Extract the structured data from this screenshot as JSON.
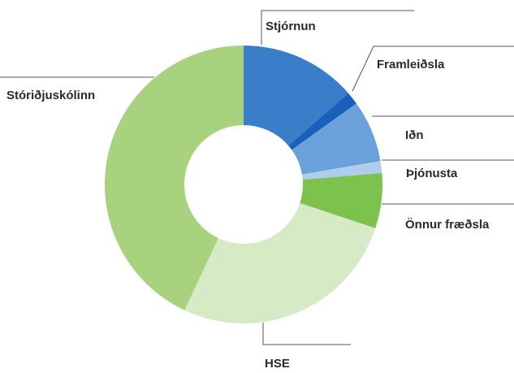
{
  "chart_data": {
    "type": "donut",
    "categories": [
      "Stjórnun",
      "Framleiðsla",
      "Iðn",
      "Þjónusta",
      "Önnur fræðsla",
      "HSE",
      "Stóriðjuskólinn"
    ],
    "values": [
      13.6,
      1.5,
      7.2,
      1.4,
      6.4,
      26.9,
      43.0
    ],
    "colors": [
      "#3a7dc9",
      "#1b5fbd",
      "#6ba1da",
      "#b0cdee",
      "#7dc24c",
      "#d7eac6",
      "#a8d27e"
    ]
  }
}
